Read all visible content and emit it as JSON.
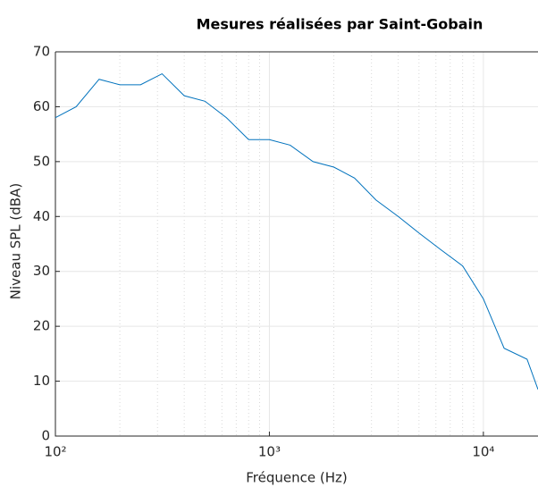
{
  "chart_data": {
    "type": "line",
    "title": "Mesures réalisées par Saint-Gobain",
    "xlabel": "Fréquence (Hz)",
    "ylabel": "Niveau SPL (dBA)",
    "xscale": "log",
    "x": [
      100,
      125,
      160,
      200,
      250,
      315,
      400,
      500,
      630,
      800,
      1000,
      1250,
      1600,
      2000,
      2500,
      3150,
      4000,
      5000,
      6300,
      8000,
      10000,
      12500,
      16000,
      18000
    ],
    "series": [
      {
        "name": "SPL",
        "color": "#0072bd",
        "values": [
          58,
          60,
          65,
          64,
          64,
          66,
          62,
          61,
          58,
          54,
          54,
          53,
          50,
          49,
          47,
          43,
          40,
          37,
          34,
          31,
          25,
          16,
          14,
          8.5
        ]
      }
    ],
    "xlim": [
      100,
      18000
    ],
    "xticks": [
      {
        "value": 100,
        "label": "10²"
      },
      {
        "value": 1000,
        "label": "10³"
      },
      {
        "value": 10000,
        "label": "10⁴"
      }
    ],
    "xminorticks": [
      200,
      300,
      400,
      500,
      600,
      700,
      800,
      900,
      2000,
      3000,
      4000,
      5000,
      6000,
      7000,
      8000,
      9000
    ],
    "ylim": [
      0,
      70
    ],
    "yticks": [
      0,
      10,
      20,
      30,
      40,
      50,
      60,
      70
    ],
    "grid": true
  }
}
